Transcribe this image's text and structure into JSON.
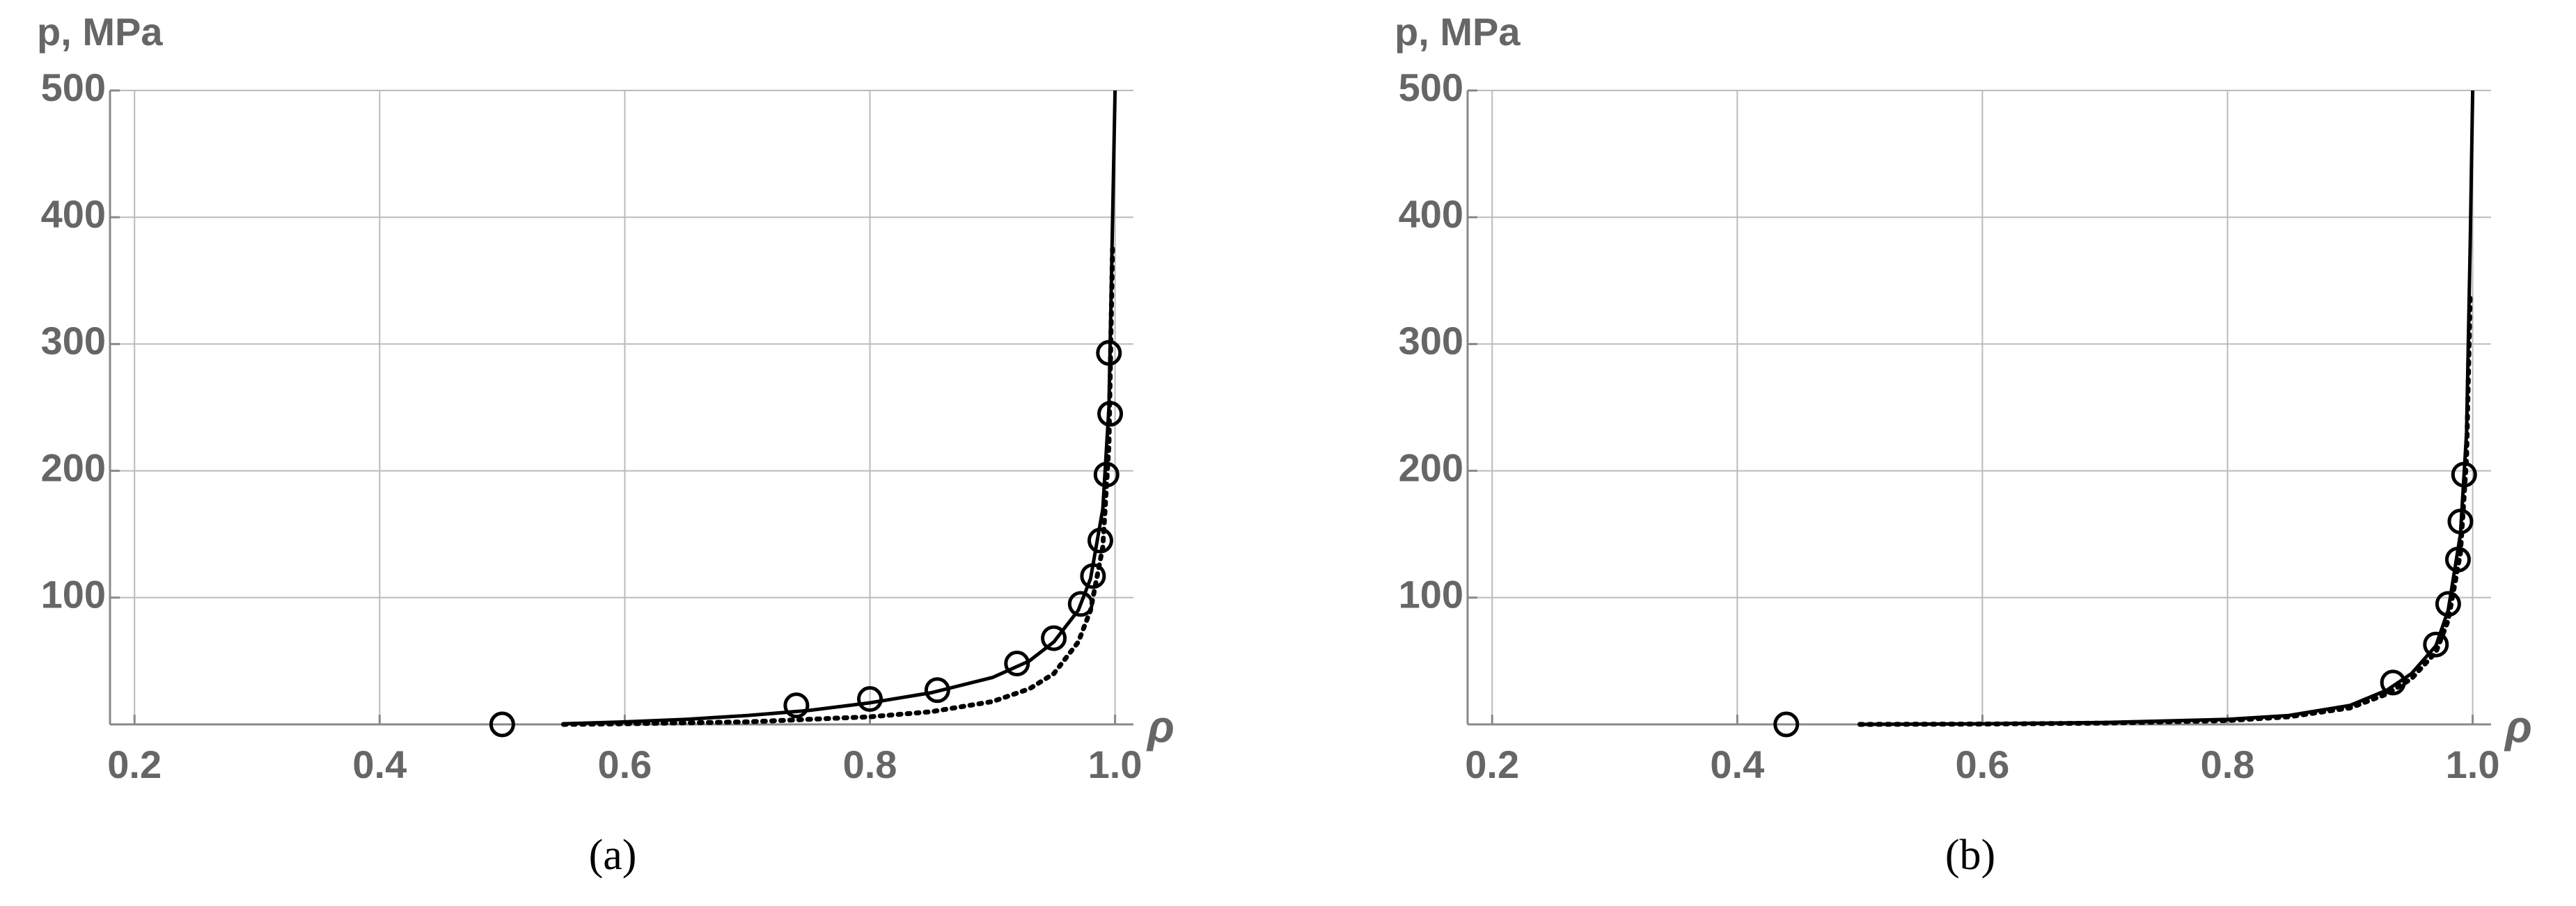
{
  "chart_data": [
    {
      "type": "line",
      "caption": "(a)",
      "xlabel": "ρ",
      "ylabel": "p, MPa",
      "xlim": [
        0.18,
        1.015
      ],
      "ylim": [
        0,
        500
      ],
      "xticks": [
        0.2,
        0.4,
        0.6,
        0.8,
        {
          "value": 1,
          "label": "1.0"
        }
      ],
      "yticks": [
        100,
        200,
        300,
        400,
        500
      ],
      "grid": true,
      "series": [
        {
          "style": "markers",
          "color": "#000000",
          "x": [
            0.5,
            0.74,
            0.8,
            0.855,
            0.92,
            0.95,
            0.972,
            0.982,
            0.988,
            0.993,
            0.996,
            0.995
          ],
          "y": [
            0,
            15,
            20,
            27,
            48,
            68,
            95,
            117,
            145,
            197,
            245,
            293
          ]
        },
        {
          "style": "solid",
          "color": "#000000",
          "x": [
            0.55,
            0.6,
            0.65,
            0.7,
            0.75,
            0.8,
            0.85,
            0.9,
            0.93,
            0.95,
            0.97,
            0.98,
            0.99,
            0.995,
            0.998,
            1.0
          ],
          "y": [
            0.5,
            2,
            4,
            7,
            11,
            17,
            25,
            37,
            50,
            65,
            90,
            115,
            170,
            250,
            400,
            500
          ]
        },
        {
          "style": "dotted",
          "color": "#000000",
          "x": [
            0.55,
            0.6,
            0.7,
            0.8,
            0.85,
            0.9,
            0.93,
            0.95,
            0.97,
            0.98,
            0.99,
            0.995,
            0.998
          ],
          "y": [
            0,
            0.5,
            2,
            6,
            10,
            18,
            28,
            40,
            65,
            90,
            140,
            220,
            380
          ]
        }
      ]
    },
    {
      "type": "line",
      "caption": "(b)",
      "xlabel": "ρ",
      "ylabel": "p, MPa",
      "xlim": [
        0.18,
        1.015
      ],
      "ylim": [
        0,
        500
      ],
      "xticks": [
        0.2,
        0.4,
        0.6,
        0.8,
        {
          "value": 1,
          "label": "1.0"
        }
      ],
      "yticks": [
        100,
        200,
        300,
        400,
        500
      ],
      "grid": true,
      "series": [
        {
          "style": "markers",
          "color": "#000000",
          "x": [
            0.44,
            0.935,
            0.97,
            0.98,
            0.988,
            0.99,
            0.993
          ],
          "y": [
            0,
            33,
            63,
            95,
            130,
            160,
            197
          ]
        },
        {
          "style": "solid",
          "color": "#000000",
          "x": [
            0.5,
            0.6,
            0.7,
            0.8,
            0.85,
            0.9,
            0.93,
            0.95,
            0.97,
            0.98,
            0.99,
            0.995,
            0.998,
            1.0
          ],
          "y": [
            0,
            0.5,
            1.5,
            4,
            7,
            15,
            27,
            40,
            62,
            90,
            150,
            230,
            380,
            500
          ]
        },
        {
          "style": "dotted",
          "color": "#000000",
          "x": [
            0.5,
            0.6,
            0.7,
            0.8,
            0.85,
            0.9,
            0.93,
            0.95,
            0.97,
            0.98,
            0.99,
            0.995,
            0.998
          ],
          "y": [
            0,
            0.3,
            1,
            3,
            6,
            13,
            24,
            36,
            57,
            82,
            135,
            210,
            340
          ]
        }
      ]
    }
  ]
}
